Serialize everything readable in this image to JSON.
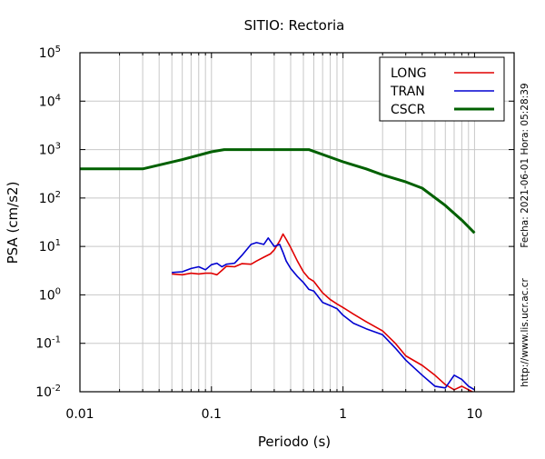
{
  "chart_data": {
    "type": "line",
    "title": "SITIO: Rectoria",
    "xlabel": "Periodo (s)",
    "ylabel": "PSA (cm/s2)",
    "x_scale": "log",
    "y_scale": "log",
    "xlim": [
      0.01,
      20
    ],
    "ylim": [
      0.01,
      100000
    ],
    "grid": true,
    "legend_position": "top-right",
    "x_ticks": [
      {
        "value": 0.01,
        "label": "0.01"
      },
      {
        "value": 0.1,
        "label": "0.1"
      },
      {
        "value": 1,
        "label": "1"
      },
      {
        "value": 10,
        "label": "10"
      }
    ],
    "y_ticks": [
      {
        "value": 0.01,
        "base": "10",
        "exp": "-2"
      },
      {
        "value": 0.1,
        "base": "10",
        "exp": "-1"
      },
      {
        "value": 1,
        "base": "10",
        "exp": "0"
      },
      {
        "value": 10,
        "base": "10",
        "exp": "1"
      },
      {
        "value": 100,
        "base": "10",
        "exp": "2"
      },
      {
        "value": 1000,
        "base": "10",
        "exp": "3"
      },
      {
        "value": 10000,
        "base": "10",
        "exp": "4"
      },
      {
        "value": 100000,
        "base": "10",
        "exp": "5"
      }
    ],
    "series": [
      {
        "name": "LONG",
        "color": "#e00000",
        "x": [
          0.05,
          0.06,
          0.07,
          0.08,
          0.09,
          0.1,
          0.11,
          0.12,
          0.13,
          0.15,
          0.17,
          0.2,
          0.22,
          0.25,
          0.28,
          0.3,
          0.33,
          0.35,
          0.37,
          0.4,
          0.45,
          0.5,
          0.55,
          0.6,
          0.7,
          0.8,
          0.9,
          1.0,
          1.2,
          1.5,
          2.0,
          2.5,
          3.0,
          4.0,
          5.0,
          6.0,
          7.0,
          8.0,
          9.0,
          10.0
        ],
        "y": [
          2.7,
          2.6,
          2.8,
          2.7,
          2.8,
          2.8,
          2.6,
          3.2,
          3.9,
          3.8,
          4.4,
          4.3,
          5.0,
          6.0,
          7.0,
          8.5,
          13,
          18,
          14,
          9.5,
          5.0,
          3.0,
          2.2,
          1.9,
          1.1,
          0.8,
          0.65,
          0.55,
          0.4,
          0.28,
          0.18,
          0.1,
          0.055,
          0.035,
          0.022,
          0.014,
          0.011,
          0.013,
          0.011,
          0.0095
        ]
      },
      {
        "name": "TRAN",
        "color": "#0000d0",
        "x": [
          0.05,
          0.06,
          0.07,
          0.08,
          0.09,
          0.1,
          0.11,
          0.12,
          0.13,
          0.15,
          0.17,
          0.2,
          0.22,
          0.25,
          0.27,
          0.28,
          0.3,
          0.33,
          0.35,
          0.37,
          0.4,
          0.45,
          0.5,
          0.55,
          0.6,
          0.7,
          0.8,
          0.9,
          1.0,
          1.2,
          1.5,
          2.0,
          2.5,
          3.0,
          4.0,
          5.0,
          6.0,
          7.0,
          8.0,
          9.0,
          10.0
        ],
        "y": [
          2.9,
          3.0,
          3.5,
          3.8,
          3.3,
          4.2,
          4.5,
          3.8,
          4.3,
          4.5,
          6.5,
          11,
          12,
          11,
          15,
          13,
          10,
          11,
          7.5,
          5.0,
          3.5,
          2.4,
          1.8,
          1.3,
          1.2,
          0.7,
          0.6,
          0.52,
          0.38,
          0.26,
          0.2,
          0.15,
          0.08,
          0.045,
          0.022,
          0.013,
          0.012,
          0.022,
          0.018,
          0.013,
          0.011
        ]
      },
      {
        "name": "CSCR",
        "color": "#006000",
        "x": [
          0.01,
          0.03,
          0.06,
          0.1,
          0.125,
          0.2,
          0.3,
          0.55,
          1.0,
          1.5,
          2.0,
          3.0,
          4.0,
          6.0,
          8.0,
          10.0
        ],
        "y": [
          400,
          400,
          620,
          900,
          1000,
          1000,
          1000,
          1000,
          560,
          400,
          300,
          215,
          160,
          70,
          35,
          19
        ]
      }
    ],
    "side_annotations": {
      "date_text": "Fecha: 2021-06-01  Hora: 05:28:39",
      "url_text": "http://www.lis.ucr.ac.cr"
    }
  }
}
